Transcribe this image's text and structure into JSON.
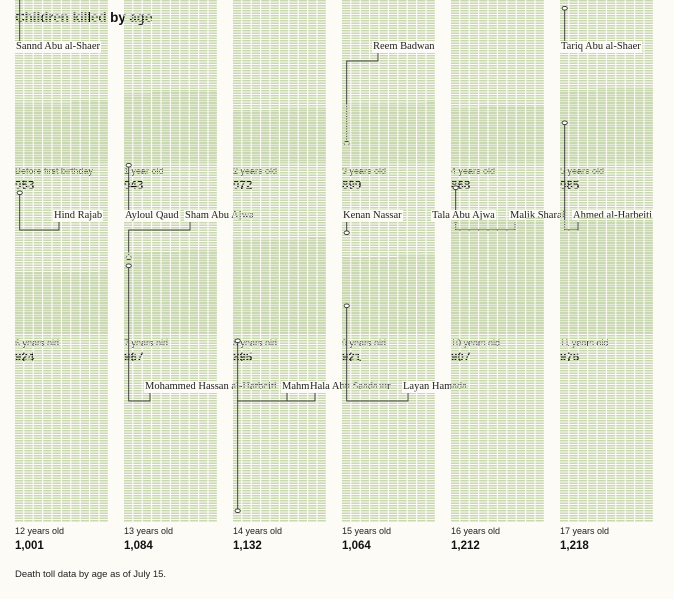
{
  "title": "Children killed by age",
  "footnote": "Death toll data by age as of July 15.",
  "colors": {
    "grid_line": "#c9d8b0",
    "marker": "#333333",
    "background": "#fcfbf6"
  },
  "chart_data": {
    "type": "small-multiples-grid",
    "title": "Children killed by age",
    "xlabel": "",
    "ylabel": "",
    "panels": [
      {
        "age": "Before first birthday",
        "count": 953,
        "count_label": "953",
        "names": [
          {
            "name": "Sannd Abu al-Shaer",
            "index": 850
          }
        ]
      },
      {
        "age": "1 year old",
        "count": 943,
        "count_label": "943",
        "names": []
      },
      {
        "age": "2 years old",
        "count": 972,
        "count_label": "972",
        "names": []
      },
      {
        "age": "3 years old",
        "count": 899,
        "count_label": "899",
        "names": [
          {
            "name": "Reem Badwan",
            "index": 70
          }
        ]
      },
      {
        "age": "4 years old",
        "count": 868,
        "count_label": "868",
        "names": []
      },
      {
        "age": "5 years old",
        "count": 985,
        "count_label": "985",
        "names": [
          {
            "name": "Tariq Abu al-Shaer",
            "index": 610
          }
        ]
      },
      {
        "age": "6 years old",
        "count": 924,
        "count_label": "924",
        "names": [
          {
            "name": "Hind Rajab",
            "index": 560
          }
        ]
      },
      {
        "age": "7 years old",
        "count": 967,
        "count_label": "967",
        "names": [
          {
            "name": "Ayloul Qaud",
            "index": 670
          },
          {
            "name": "Sham Abu Ajwa",
            "index": 300
          }
        ]
      },
      {
        "age": "8 years old",
        "count": 895,
        "count_label": "895",
        "names": []
      },
      {
        "age": "9 years old",
        "count": 921,
        "count_label": "921",
        "names": [
          {
            "name": "Kenan Nassar",
            "index": 400
          }
        ]
      },
      {
        "age": "10 years old",
        "count": 907,
        "count_label": "907",
        "names": [
          {
            "name": "Tala Abu Ajwa",
            "index": 580
          },
          {
            "name": "Malik Sharaf",
            "index": 450
          }
        ]
      },
      {
        "age": "11 years old",
        "count": 976,
        "count_label": "976",
        "names": [
          {
            "name": "Ahmed al-Harbeiti",
            "index": 840
          }
        ]
      },
      {
        "age": "12 years old",
        "count": 1001,
        "count_label": "1,001",
        "names": []
      },
      {
        "age": "13 years old",
        "count": 1084,
        "count_label": "1,084",
        "names": [
          {
            "name": "Mohammed Hassan al-Harbeiti",
            "index": 1020
          }
        ]
      },
      {
        "age": "14 years old",
        "count": 1132,
        "count_label": "1,132",
        "names": [
          {
            "name": "Mahmoud Abdel Ghafour",
            "index": 720
          },
          {
            "name": "Hala Abu Saada",
            "index": 40
          }
        ]
      },
      {
        "age": "15 years old",
        "count": 1064,
        "count_label": "1,064",
        "names": [
          {
            "name": "Layan Hamada",
            "index": 860
          }
        ]
      },
      {
        "age": "16 years old",
        "count": 1212,
        "count_label": "1,212",
        "names": []
      },
      {
        "age": "17 years old",
        "count": 1218,
        "count_label": "1,218",
        "names": []
      }
    ]
  }
}
